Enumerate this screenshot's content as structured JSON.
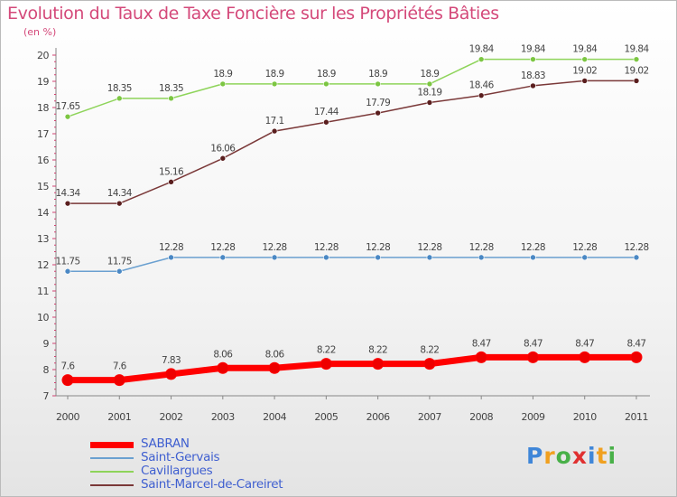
{
  "title": "Evolution du Taux de Taxe Foncière sur les Propriétés Bâties",
  "subtitle": "(en %)",
  "logo": {
    "text": "Proxiti",
    "letters": [
      {
        "ch": "P",
        "color": "#3f86d8"
      },
      {
        "ch": "r",
        "color": "#f0a020"
      },
      {
        "ch": "o",
        "color": "#48b048"
      },
      {
        "ch": "x",
        "color": "#e03030"
      },
      {
        "ch": "i",
        "color": "#3f86d8"
      },
      {
        "ch": "t",
        "color": "#f0a020"
      },
      {
        "ch": "i",
        "color": "#48b048"
      }
    ]
  },
  "chart_data": {
    "type": "line",
    "categories": [
      "2000",
      "2001",
      "2002",
      "2003",
      "2004",
      "2005",
      "2006",
      "2007",
      "2008",
      "2009",
      "2010",
      "2011"
    ],
    "ylim": [
      7,
      20
    ],
    "yticks": [
      "7",
      "8",
      "9",
      "10",
      "11",
      "12",
      "13",
      "14",
      "15",
      "16",
      "17",
      "18",
      "19",
      "20"
    ],
    "grid": false,
    "legend_position": "bottom-left",
    "series": [
      {
        "name": "SABRAN",
        "color": "#ff0000",
        "marker_color": "#ee0000",
        "width": 7,
        "marker_r": 6,
        "values": [
          7.6,
          7.6,
          7.83,
          8.06,
          8.06,
          8.22,
          8.22,
          8.22,
          8.47,
          8.47,
          8.47,
          8.47
        ],
        "labels": [
          "7.6",
          "7.6",
          "7.83",
          "8.06",
          "8.06",
          "8.22",
          "8.22",
          "8.22",
          "8.47",
          "8.47",
          "8.47",
          "8.47"
        ]
      },
      {
        "name": "Saint-Gervais",
        "color": "#6aa0d0",
        "marker_color": "#4a88c4",
        "width": 1.5,
        "marker_r": 3,
        "values": [
          11.75,
          11.75,
          12.28,
          12.28,
          12.28,
          12.28,
          12.28,
          12.28,
          12.28,
          12.28,
          12.28,
          12.28
        ],
        "labels": [
          "11.75",
          "11.75",
          "12.28",
          "12.28",
          "12.28",
          "12.28",
          "12.28",
          "12.28",
          "12.28",
          "12.28",
          "12.28",
          "12.28"
        ]
      },
      {
        "name": "Cavillargues",
        "color": "#8ed45a",
        "marker_color": "#7cc642",
        "width": 1.5,
        "marker_r": 3,
        "values": [
          17.65,
          18.35,
          18.35,
          18.9,
          18.9,
          18.9,
          18.9,
          18.9,
          19.84,
          19.84,
          19.84,
          19.84
        ],
        "labels": [
          "17.65",
          "18.35",
          "18.35",
          "18.9",
          "18.9",
          "18.9",
          "18.9",
          "18.9",
          "19.84",
          "19.84",
          "19.84",
          "19.84"
        ]
      },
      {
        "name": "Saint-Marcel-de-Careiret",
        "color": "#7a3838",
        "marker_color": "#5a1e1e",
        "width": 1.5,
        "marker_r": 3,
        "values": [
          14.34,
          14.34,
          15.16,
          16.06,
          17.1,
          17.44,
          17.79,
          18.19,
          18.46,
          18.83,
          19.02,
          19.02
        ],
        "labels": [
          "14.34",
          "14.34",
          "15.16",
          "16.06",
          "17.1",
          "17.44",
          "17.79",
          "18.19",
          "18.46",
          "18.83",
          "19.02",
          "19.02"
        ]
      }
    ]
  }
}
